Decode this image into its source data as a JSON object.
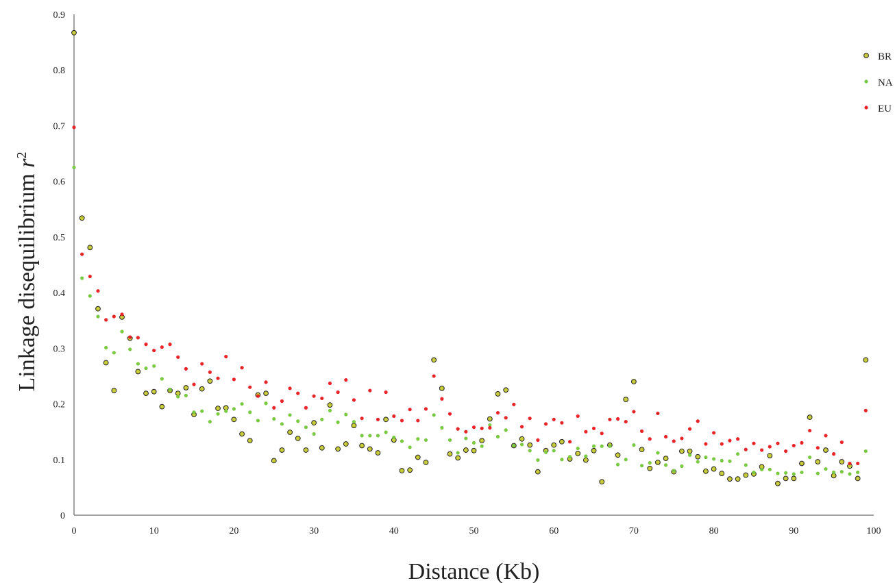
{
  "chart_data": {
    "type": "scatter",
    "title": "",
    "xlabel": "Distance (Kb)",
    "ylabel_main": "Linkage disequilibrium ",
    "ylabel_var": "r",
    "ylabel_sup": "2",
    "xlim": [
      0,
      100
    ],
    "ylim": [
      0,
      0.9
    ],
    "xticks": [
      "0",
      "10",
      "20",
      "30",
      "40",
      "50",
      "60",
      "70",
      "80",
      "90",
      "100"
    ],
    "yticks": [
      "0",
      "0.1",
      "0.2",
      "0.3",
      "0.4",
      "0.5",
      "0.6",
      "0.7",
      "0.8",
      "0.9"
    ],
    "grid": false,
    "legend_position": "top-right",
    "x": [
      0,
      1,
      2,
      3,
      4,
      5,
      6,
      7,
      8,
      9,
      10,
      11,
      12,
      13,
      14,
      15,
      16,
      17,
      18,
      19,
      20,
      21,
      22,
      23,
      24,
      25,
      26,
      27,
      28,
      29,
      30,
      31,
      32,
      33,
      34,
      35,
      36,
      37,
      38,
      39,
      40,
      41,
      42,
      43,
      44,
      45,
      46,
      47,
      48,
      49,
      50,
      51,
      52,
      53,
      54,
      55,
      56,
      57,
      58,
      59,
      60,
      61,
      62,
      63,
      64,
      65,
      66,
      67,
      68,
      69,
      70,
      71,
      72,
      73,
      74,
      75,
      76,
      77,
      78,
      79,
      80,
      81,
      82,
      83,
      84,
      85,
      86,
      87,
      88,
      89,
      90,
      91,
      92,
      93,
      94,
      95,
      96,
      97,
      98,
      99
    ],
    "series": [
      {
        "name": "BR",
        "color": "#c8cc3a",
        "marker": "circle-outlined",
        "values": [
          0.867,
          0.534,
          0.481,
          0.371,
          0.274,
          0.224,
          0.356,
          0.318,
          0.258,
          0.219,
          0.222,
          0.195,
          0.224,
          0.219,
          0.229,
          0.181,
          0.227,
          0.241,
          0.192,
          0.193,
          0.172,
          0.146,
          0.134,
          0.216,
          0.219,
          0.098,
          0.117,
          0.149,
          0.138,
          0.117,
          0.166,
          0.121,
          0.198,
          0.119,
          0.128,
          0.161,
          0.125,
          0.119,
          0.112,
          0.172,
          0.135,
          0.08,
          0.081,
          0.104,
          0.095,
          0.279,
          0.228,
          0.11,
          0.103,
          0.117,
          0.116,
          0.134,
          0.173,
          0.218,
          0.225,
          0.125,
          0.137,
          0.126,
          0.078,
          0.116,
          0.126,
          0.132,
          0.101,
          0.111,
          0.099,
          0.116,
          0.06,
          0.126,
          0.108,
          0.208,
          0.24,
          0.118,
          0.084,
          0.095,
          0.102,
          0.078,
          0.115,
          0.115,
          0.105,
          0.079,
          0.083,
          0.075,
          0.065,
          0.065,
          0.072,
          0.074,
          0.087,
          0.107,
          0.057,
          0.066,
          0.066,
          0.093,
          0.176,
          0.096,
          0.117,
          0.071,
          0.096,
          0.088,
          0.066,
          0.279
        ]
      },
      {
        "name": "NA",
        "color": "#7ac943",
        "marker": "dot",
        "values": [
          0.625,
          0.426,
          0.394,
          0.357,
          0.301,
          0.292,
          0.33,
          0.298,
          0.272,
          0.264,
          0.268,
          0.245,
          0.226,
          0.213,
          0.215,
          0.185,
          0.187,
          0.168,
          0.182,
          0.187,
          0.191,
          0.2,
          0.185,
          0.17,
          0.201,
          0.173,
          0.164,
          0.18,
          0.169,
          0.158,
          0.146,
          0.172,
          0.188,
          0.167,
          0.181,
          0.168,
          0.143,
          0.143,
          0.143,
          0.149,
          0.14,
          0.133,
          0.122,
          0.137,
          0.135,
          0.18,
          0.157,
          0.135,
          0.112,
          0.138,
          0.13,
          0.124,
          0.162,
          0.141,
          0.153,
          0.125,
          0.127,
          0.116,
          0.099,
          0.113,
          0.116,
          0.1,
          0.105,
          0.12,
          0.106,
          0.124,
          0.124,
          0.124,
          0.091,
          0.1,
          0.126,
          0.089,
          0.094,
          0.112,
          0.09,
          0.08,
          0.088,
          0.108,
          0.096,
          0.104,
          0.101,
          0.098,
          0.097,
          0.11,
          0.09,
          0.077,
          0.082,
          0.082,
          0.075,
          0.076,
          0.074,
          0.077,
          0.104,
          0.075,
          0.083,
          0.077,
          0.078,
          0.074,
          0.077,
          0.115
        ]
      },
      {
        "name": "EU",
        "color": "#e8262a",
        "marker": "dot",
        "values": [
          0.697,
          0.469,
          0.429,
          0.403,
          0.351,
          0.357,
          0.361,
          0.32,
          0.319,
          0.307,
          0.296,
          0.302,
          0.307,
          0.284,
          0.263,
          0.235,
          0.272,
          0.257,
          0.246,
          0.285,
          0.244,
          0.265,
          0.23,
          0.214,
          0.239,
          0.193,
          0.205,
          0.228,
          0.219,
          0.193,
          0.214,
          0.21,
          0.237,
          0.221,
          0.243,
          0.207,
          0.174,
          0.224,
          0.172,
          0.221,
          0.178,
          0.17,
          0.19,
          0.17,
          0.191,
          0.25,
          0.209,
          0.182,
          0.155,
          0.15,
          0.158,
          0.156,
          0.157,
          0.184,
          0.175,
          0.199,
          0.159,
          0.174,
          0.135,
          0.164,
          0.172,
          0.166,
          0.132,
          0.178,
          0.15,
          0.156,
          0.147,
          0.172,
          0.173,
          0.168,
          0.186,
          0.151,
          0.137,
          0.183,
          0.141,
          0.133,
          0.138,
          0.155,
          0.169,
          0.128,
          0.148,
          0.128,
          0.134,
          0.137,
          0.118,
          0.129,
          0.117,
          0.123,
          0.129,
          0.115,
          0.125,
          0.13,
          0.152,
          0.121,
          0.143,
          0.11,
          0.131,
          0.093,
          0.093,
          0.188
        ]
      }
    ]
  }
}
